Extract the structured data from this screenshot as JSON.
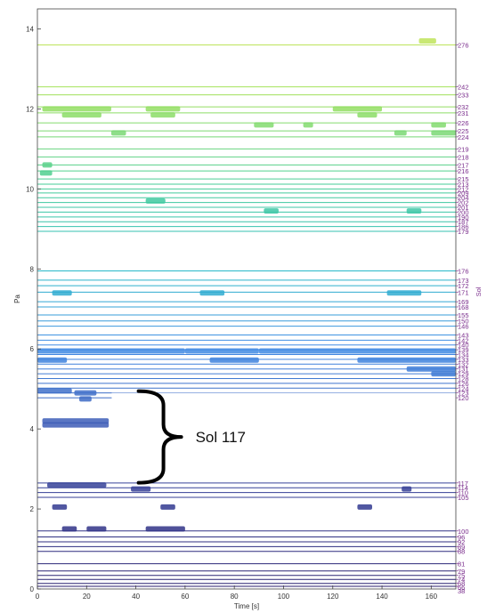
{
  "chart_data": {
    "type": "line",
    "title": "",
    "xlabel": "Time [s]",
    "ylabel": "Pa",
    "y2label": "Sol",
    "xlim": [
      0,
      170
    ],
    "ylim": [
      0,
      14.5
    ],
    "x_ticks": [
      "0",
      "20",
      "40",
      "60",
      "80",
      "100",
      "120",
      "140",
      "160"
    ],
    "y_ticks": [
      "0",
      "2",
      "4",
      "6",
      "8",
      "10",
      "12",
      "14"
    ],
    "annotation": {
      "text": "Sol 117",
      "brace_from_y": 2.7,
      "brace_to_y": 4.9,
      "x": 40
    },
    "sol_labels": [
      {
        "sol": "276",
        "y": 13.6
      },
      {
        "sol": "242",
        "y": 12.55
      },
      {
        "sol": "233",
        "y": 12.35
      },
      {
        "sol": "232",
        "y": 12.05
      },
      {
        "sol": "231",
        "y": 11.9
      },
      {
        "sol": "226",
        "y": 11.65
      },
      {
        "sol": "225",
        "y": 11.45
      },
      {
        "sol": "224",
        "y": 11.3
      },
      {
        "sol": "219",
        "y": 11.0
      },
      {
        "sol": "218",
        "y": 10.8
      },
      {
        "sol": "217",
        "y": 10.6
      },
      {
        "sol": "216",
        "y": 10.45
      },
      {
        "sol": "215",
        "y": 10.25
      },
      {
        "sol": "213",
        "y": 10.12
      },
      {
        "sol": "212",
        "y": 10.0
      },
      {
        "sol": "209",
        "y": 9.9
      },
      {
        "sol": "204",
        "y": 9.78
      },
      {
        "sol": "202",
        "y": 9.66
      },
      {
        "sol": "201",
        "y": 9.54
      },
      {
        "sol": "200",
        "y": 9.42
      },
      {
        "sol": "190",
        "y": 9.3
      },
      {
        "sol": "187",
        "y": 9.18
      },
      {
        "sol": "186",
        "y": 9.06
      },
      {
        "sol": "179",
        "y": 8.94
      },
      {
        "sol": "176",
        "y": 7.95
      },
      {
        "sol": "173",
        "y": 7.72
      },
      {
        "sol": "172",
        "y": 7.58
      },
      {
        "sol": "171",
        "y": 7.42
      },
      {
        "sol": "169",
        "y": 7.18
      },
      {
        "sol": "168",
        "y": 7.05
      },
      {
        "sol": "155",
        "y": 6.85
      },
      {
        "sol": "150",
        "y": 6.7
      },
      {
        "sol": "146",
        "y": 6.57
      },
      {
        "sol": "143",
        "y": 6.35
      },
      {
        "sol": "142",
        "y": 6.22
      },
      {
        "sol": "140",
        "y": 6.1
      },
      {
        "sol": "139",
        "y": 5.98
      },
      {
        "sol": "134",
        "y": 5.86
      },
      {
        "sol": "133",
        "y": 5.74
      },
      {
        "sol": "132",
        "y": 5.62
      },
      {
        "sol": "131",
        "y": 5.5
      },
      {
        "sol": "129",
        "y": 5.38
      },
      {
        "sol": "128",
        "y": 5.26
      },
      {
        "sol": "126",
        "y": 5.14
      },
      {
        "sol": "124",
        "y": 5.02
      },
      {
        "sol": "123",
        "y": 4.9
      },
      {
        "sol": "120",
        "y": 4.78
      },
      {
        "sol": "117",
        "y": 2.65
      },
      {
        "sol": "114",
        "y": 2.53
      },
      {
        "sol": "110",
        "y": 2.41
      },
      {
        "sol": "105",
        "y": 2.29
      },
      {
        "sol": "100",
        "y": 1.45
      },
      {
        "sol": "96",
        "y": 1.3
      },
      {
        "sol": "92",
        "y": 1.18
      },
      {
        "sol": "89",
        "y": 1.06
      },
      {
        "sol": "88",
        "y": 0.94
      },
      {
        "sol": "81",
        "y": 0.63
      },
      {
        "sol": "79",
        "y": 0.45
      },
      {
        "sol": "75",
        "y": 0.34
      },
      {
        "sol": "74",
        "y": 0.24
      },
      {
        "sol": "68",
        "y": 0.14
      },
      {
        "sol": "66",
        "y": 0.04
      },
      {
        "sol": "38",
        "y": -0.25
      }
    ],
    "activity_bursts": [
      {
        "y": 13.7,
        "x": [
          155,
          162
        ]
      },
      {
        "y": 12.0,
        "x": [
          2,
          30
        ]
      },
      {
        "y": 12.0,
        "x": [
          44,
          58
        ]
      },
      {
        "y": 12.0,
        "x": [
          120,
          140
        ]
      },
      {
        "y": 11.85,
        "x": [
          10,
          26
        ]
      },
      {
        "y": 11.85,
        "x": [
          46,
          56
        ]
      },
      {
        "y": 11.85,
        "x": [
          130,
          138
        ]
      },
      {
        "y": 11.6,
        "x": [
          88,
          96
        ]
      },
      {
        "y": 11.6,
        "x": [
          108,
          112
        ]
      },
      {
        "y": 11.6,
        "x": [
          160,
          166
        ]
      },
      {
        "y": 11.4,
        "x": [
          30,
          36
        ]
      },
      {
        "y": 11.4,
        "x": [
          145,
          150
        ]
      },
      {
        "y": 11.4,
        "x": [
          160,
          170
        ]
      },
      {
        "y": 10.6,
        "x": [
          2,
          6
        ]
      },
      {
        "y": 10.4,
        "x": [
          1,
          6
        ]
      },
      {
        "y": 9.7,
        "x": [
          44,
          52
        ]
      },
      {
        "y": 9.45,
        "x": [
          92,
          98
        ]
      },
      {
        "y": 9.45,
        "x": [
          150,
          156
        ]
      },
      {
        "y": 7.4,
        "x": [
          6,
          14
        ]
      },
      {
        "y": 7.4,
        "x": [
          66,
          76
        ]
      },
      {
        "y": 7.4,
        "x": [
          142,
          156
        ]
      },
      {
        "y": 5.95,
        "x": [
          0,
          60
        ]
      },
      {
        "y": 5.95,
        "x": [
          60,
          90
        ]
      },
      {
        "y": 5.95,
        "x": [
          90,
          170
        ]
      },
      {
        "y": 5.72,
        "x": [
          0,
          12
        ]
      },
      {
        "y": 5.72,
        "x": [
          70,
          90
        ]
      },
      {
        "y": 5.72,
        "x": [
          130,
          170
        ]
      },
      {
        "y": 5.5,
        "x": [
          150,
          170
        ]
      },
      {
        "y": 5.38,
        "x": [
          160,
          170
        ]
      },
      {
        "y": 4.95,
        "x": [
          0,
          14
        ]
      },
      {
        "y": 4.9,
        "x": [
          15,
          24
        ]
      },
      {
        "y": 4.75,
        "x": [
          17,
          22
        ]
      },
      {
        "y": 4.2,
        "x": [
          2,
          29
        ]
      },
      {
        "y": 4.1,
        "x": [
          2,
          29
        ]
      },
      {
        "y": 2.6,
        "x": [
          4,
          28
        ]
      },
      {
        "y": 2.5,
        "x": [
          38,
          46
        ]
      },
      {
        "y": 2.5,
        "x": [
          148,
          152
        ]
      },
      {
        "y": 2.05,
        "x": [
          6,
          12
        ]
      },
      {
        "y": 2.05,
        "x": [
          50,
          56
        ]
      },
      {
        "y": 2.05,
        "x": [
          130,
          136
        ]
      },
      {
        "y": 1.5,
        "x": [
          10,
          16
        ]
      },
      {
        "y": 1.5,
        "x": [
          44,
          60
        ]
      },
      {
        "y": 1.5,
        "x": [
          20,
          28
        ]
      }
    ],
    "grid": false,
    "legend": "none"
  }
}
